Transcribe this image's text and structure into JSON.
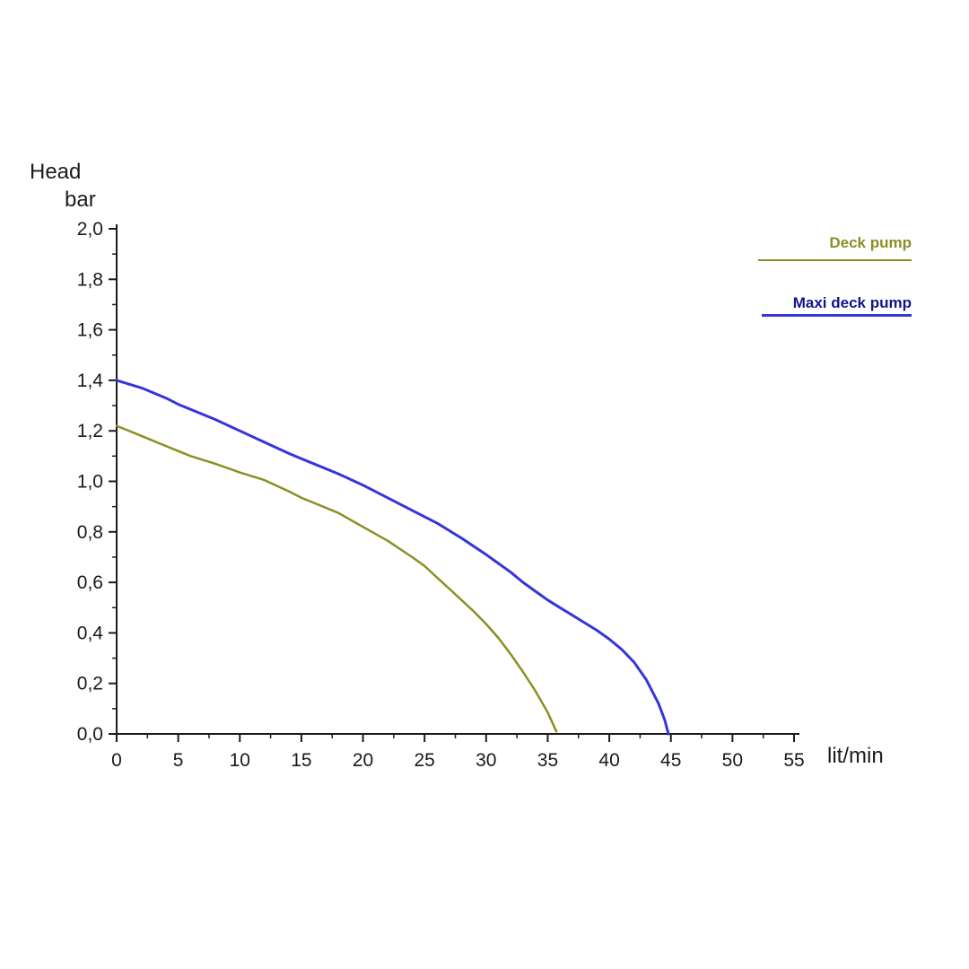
{
  "chart_data": {
    "type": "line",
    "title": "",
    "xlabel": "lit/min",
    "ylabel_lines": [
      "Head",
      "bar"
    ],
    "xlim": [
      0,
      55
    ],
    "ylim": [
      0,
      2.0
    ],
    "x_ticks": [
      0,
      5,
      10,
      15,
      20,
      25,
      30,
      35,
      40,
      45,
      50,
      55
    ],
    "x_tick_labels": [
      "0",
      "5",
      "10",
      "15",
      "20",
      "25",
      "30",
      "35",
      "40",
      "45",
      "50",
      "55"
    ],
    "y_ticks": [
      0,
      0.2,
      0.4,
      0.6,
      0.8,
      1.0,
      1.2,
      1.4,
      1.6,
      1.8,
      2.0
    ],
    "y_tick_labels": [
      "0,0",
      "0,2",
      "0,4",
      "0,6",
      "0,8",
      "1,0",
      "1,2",
      "1,4",
      "1,6",
      "1,8",
      "2,0"
    ],
    "grid": false,
    "legend_position": "top-right",
    "axis_color": "#1c1c1c",
    "tick_label_color": "#1a1a1a",
    "series": [
      {
        "name": "Deck pump",
        "color": "#8e8e25",
        "label_color": "#8e8e25",
        "max_flow": 35.7,
        "shutoff_head": 1.22,
        "points": [
          [
            0,
            1.22
          ],
          [
            2,
            1.18
          ],
          [
            4,
            1.14
          ],
          [
            5,
            1.12
          ],
          [
            6,
            1.1
          ],
          [
            8,
            1.07
          ],
          [
            10,
            1.035
          ],
          [
            12,
            1.005
          ],
          [
            14,
            0.96
          ],
          [
            15,
            0.935
          ],
          [
            16,
            0.915
          ],
          [
            18,
            0.875
          ],
          [
            20,
            0.82
          ],
          [
            22,
            0.765
          ],
          [
            24,
            0.7
          ],
          [
            25,
            0.665
          ],
          [
            26,
            0.62
          ],
          [
            27,
            0.575
          ],
          [
            28,
            0.53
          ],
          [
            29,
            0.485
          ],
          [
            30,
            0.435
          ],
          [
            31,
            0.38
          ],
          [
            32,
            0.315
          ],
          [
            33,
            0.245
          ],
          [
            34,
            0.17
          ],
          [
            35,
            0.085
          ],
          [
            35.7,
            0.01
          ]
        ]
      },
      {
        "name": "Maxi deck pump",
        "color": "#3535db",
        "label_color": "#14148c",
        "max_flow": 44.8,
        "shutoff_head": 1.4,
        "points": [
          [
            0,
            1.4
          ],
          [
            2,
            1.37
          ],
          [
            4,
            1.33
          ],
          [
            5,
            1.305
          ],
          [
            6,
            1.285
          ],
          [
            8,
            1.245
          ],
          [
            10,
            1.2
          ],
          [
            12,
            1.155
          ],
          [
            14,
            1.11
          ],
          [
            15,
            1.09
          ],
          [
            16,
            1.07
          ],
          [
            18,
            1.03
          ],
          [
            20,
            0.985
          ],
          [
            22,
            0.935
          ],
          [
            24,
            0.885
          ],
          [
            25,
            0.86
          ],
          [
            26,
            0.835
          ],
          [
            28,
            0.775
          ],
          [
            30,
            0.71
          ],
          [
            32,
            0.64
          ],
          [
            33,
            0.6
          ],
          [
            34,
            0.565
          ],
          [
            35,
            0.53
          ],
          [
            36,
            0.5
          ],
          [
            37,
            0.47
          ],
          [
            38,
            0.44
          ],
          [
            39,
            0.41
          ],
          [
            40,
            0.375
          ],
          [
            41,
            0.335
          ],
          [
            42,
            0.285
          ],
          [
            43,
            0.215
          ],
          [
            44,
            0.12
          ],
          [
            44.5,
            0.055
          ],
          [
            44.8,
            0.0
          ]
        ]
      }
    ]
  }
}
